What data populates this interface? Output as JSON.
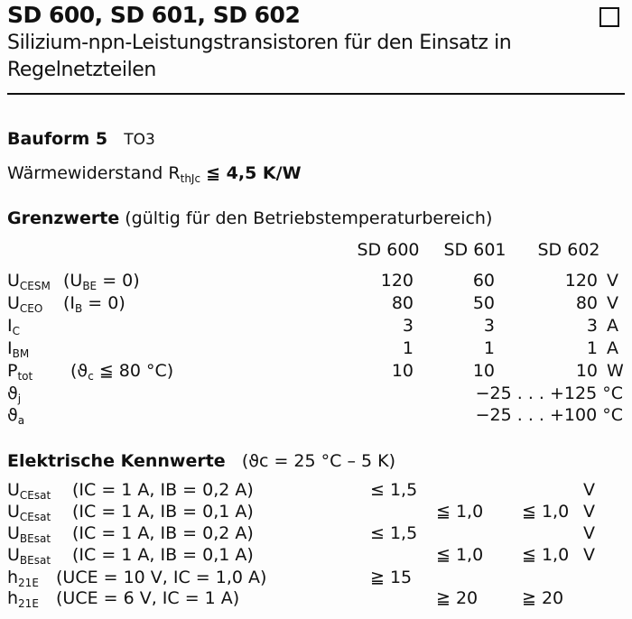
{
  "title": "SD 600, SD 601, SD 602",
  "subtitle_line1": "Silizium-npn-Leistungstransistoren für den Einsatz in",
  "subtitle_line2": "Regelnetzteilen",
  "bauform": {
    "label": "Bauform 5",
    "package": "TO3"
  },
  "thermal": {
    "label": "Wärmewiderstand",
    "symbol": "R",
    "symbol_sub": "thJc",
    "value": "≦ 4,5 K/W"
  },
  "grenzwerte": {
    "heading": "Grenzwerte",
    "note": "(gültig für den Betriebstemperaturbereich)",
    "columns": [
      "SD 600",
      "SD 601",
      "SD 602"
    ],
    "rows": [
      {
        "sym": "U",
        "sub": "CESM",
        "cond": "(U",
        "cond_sub": "BE",
        "cond_rest": " = 0)",
        "v": [
          "120",
          "60",
          "120"
        ],
        "unit": "V"
      },
      {
        "sym": "U",
        "sub": "CEO",
        "cond": "(I",
        "cond_sub": "B",
        "cond_rest": " = 0)",
        "v": [
          "80",
          "50",
          "80"
        ],
        "unit": "V"
      },
      {
        "sym": "I",
        "sub": "C",
        "v": [
          "3",
          "3",
          "3"
        ],
        "unit": "A"
      },
      {
        "sym": "I",
        "sub": "BM",
        "v": [
          "1",
          "1",
          "1"
        ],
        "unit": "A"
      },
      {
        "sym": "P",
        "sub": "tot",
        "cond": "(ϑ",
        "cond_sub": "c",
        "cond_rest": "  ≦ 80 °C)",
        "v": [
          "10",
          "10",
          "10"
        ],
        "unit": "W"
      },
      {
        "sym": "ϑ",
        "sub": "j",
        "range": "−25 . . . +125 °C"
      },
      {
        "sym": "ϑ",
        "sub": "a",
        "range": "−25 . . . +100 °C"
      }
    ]
  },
  "kennwerte": {
    "heading": "Elektrische Kennwerte",
    "note": "(ϑc = 25 °C – 5 K)",
    "rows": [
      {
        "sym": "U",
        "sub": "CEsat",
        "cond": "(IC = 1 A,  IB = 0,2 A)",
        "v600": "≤ 1,5",
        "v601": "",
        "v602": "",
        "unit": "V"
      },
      {
        "sym": "U",
        "sub": "CEsat",
        "cond": "(IC = 1 A, IB = 0,1 A)",
        "v600": "",
        "v601": "≦ 1,0",
        "v602": "≦ 1,0",
        "unit": "V"
      },
      {
        "sym": "U",
        "sub": "BEsat",
        "cond": "(IC = 1 A,  IB = 0,2 A)",
        "v600": "≤ 1,5",
        "v601": "",
        "v602": "",
        "unit": "V"
      },
      {
        "sym": "U",
        "sub": "BEsat",
        "cond": "(IC = 1 A, IB = 0,1 A)",
        "v600": "",
        "v601": "≦ 1,0",
        "v602": "≦ 1,0",
        "unit": "V"
      },
      {
        "sym": "h",
        "sub": "21E",
        "cond": "   (UCE = 10 V, IC = 1,0 A)",
        "v600": "≧ 15",
        "v601": "",
        "v602": "",
        "unit": ""
      },
      {
        "sym": "h",
        "sub": "21E",
        "cond": "(UCE = 6 V, IC = 1 A)",
        "v600": "",
        "v601": "≧ 20",
        "v602": "≧ 20",
        "unit": ""
      }
    ]
  }
}
